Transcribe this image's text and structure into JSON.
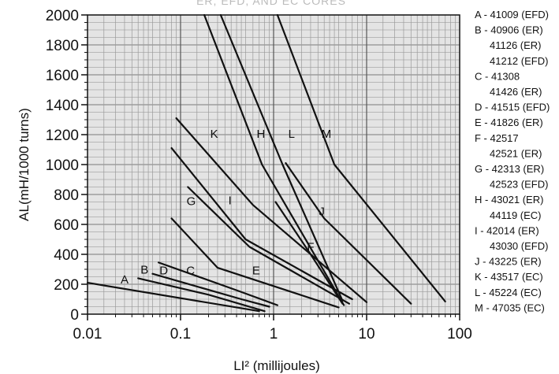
{
  "chart_data": {
    "type": "line",
    "title": "ER, EFD, AND EC CORES",
    "xlabel": "LI² (millijoules)",
    "ylabel": "AL(mH/1000 turns)",
    "x_scale": "log",
    "xlim": [
      0.01,
      100
    ],
    "ylim": [
      0,
      2000
    ],
    "x_ticks": [
      "0.01",
      "0.1",
      "1",
      "10",
      "100"
    ],
    "y_ticks": [
      "0",
      "200",
      "400",
      "600",
      "800",
      "1000",
      "1200",
      "1400",
      "1600",
      "1800",
      "2000"
    ],
    "grid": true,
    "legend_position": "right",
    "series": [
      {
        "name": "A",
        "x": [
          0.01,
          0.7
        ],
        "y": [
          210,
          20
        ]
      },
      {
        "name": "B",
        "x": [
          0.035,
          0.2,
          0.8
        ],
        "y": [
          240,
          130,
          20
        ]
      },
      {
        "name": "D",
        "x": [
          0.05,
          0.45,
          0.9
        ],
        "y": [
          270,
          100,
          50
        ]
      },
      {
        "name": "C",
        "x": [
          0.058,
          0.4,
          1.1
        ],
        "y": [
          345,
          160,
          60
        ]
      },
      {
        "name": "E",
        "x": [
          0.08,
          0.25,
          5
        ],
        "y": [
          640,
          310,
          45
        ]
      },
      {
        "name": "G",
        "x": [
          0.12,
          0.55,
          6.5
        ],
        "y": [
          850,
          450,
          70
        ]
      },
      {
        "name": "I",
        "x": [
          0.08,
          0.5,
          7
        ],
        "y": [
          1110,
          500,
          100
        ]
      },
      {
        "name": "K",
        "x": [
          0.09,
          0.6,
          10
        ],
        "y": [
          1310,
          730,
          80
        ]
      },
      {
        "name": "F",
        "x": [
          1.05,
          2.5,
          5.5
        ],
        "y": [
          750,
          400,
          70
        ]
      },
      {
        "name": "H",
        "x": [
          0.18,
          0.75,
          5.7
        ],
        "y": [
          2000,
          1000,
          60
        ]
      },
      {
        "name": "L",
        "x": [
          0.27,
          1.25,
          5.5
        ],
        "y": [
          2000,
          1000,
          90
        ]
      },
      {
        "name": "J",
        "x": [
          1.35,
          3.5,
          30
        ],
        "y": [
          1010,
          640,
          70
        ]
      },
      {
        "name": "M",
        "x": [
          1.1,
          4.5,
          70
        ],
        "y": [
          2000,
          1000,
          85
        ]
      }
    ],
    "curve_labels": [
      {
        "text": "A",
        "x": 0.025,
        "y": 205
      },
      {
        "text": "B",
        "x": 0.041,
        "y": 270
      },
      {
        "text": "D",
        "x": 0.066,
        "y": 265
      },
      {
        "text": "C",
        "x": 0.128,
        "y": 265
      },
      {
        "text": "E",
        "x": 0.65,
        "y": 265
      },
      {
        "text": "G",
        "x": 0.13,
        "y": 730
      },
      {
        "text": "I",
        "x": 0.34,
        "y": 735
      },
      {
        "text": "K",
        "x": 0.23,
        "y": 1180
      },
      {
        "text": "H",
        "x": 0.73,
        "y": 1180
      },
      {
        "text": "L",
        "x": 1.56,
        "y": 1180
      },
      {
        "text": "M",
        "x": 3.7,
        "y": 1180
      },
      {
        "text": "J",
        "x": 3.3,
        "y": 660
      },
      {
        "text": "F",
        "x": 2.5,
        "y": 425
      }
    ],
    "legend": [
      "A - 41009 (EFD)",
      "B - 40906 (ER)",
      "41126 (ER)",
      "41212 (EFD)",
      "C - 41308",
      "41426 (ER)",
      "D - 41515 (EFD)",
      "E - 41826 (ER)",
      "F - 42517",
      "42521 (ER)",
      "G - 42313 (ER)",
      "42523 (EFD)",
      "H - 43021 (ER)",
      "44119 (EC)",
      "I - 42014 (ER)",
      "43030 (EFD)",
      "J - 43225 (ER)",
      "K - 43517 (EC)",
      "L - 45224 (EC)",
      "M - 47035 (EC)"
    ]
  }
}
